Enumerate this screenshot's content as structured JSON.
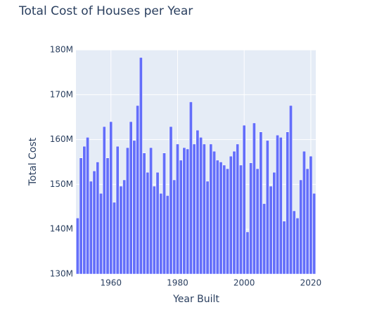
{
  "chart_data": {
    "type": "bar",
    "title": "Total Cost of Houses per Year",
    "x_label": "Year Built",
    "y_label": "Total Cost",
    "color": "#636efa",
    "grid": true,
    "x": [
      1950,
      1951,
      1952,
      1953,
      1954,
      1955,
      1956,
      1957,
      1958,
      1959,
      1960,
      1961,
      1962,
      1963,
      1964,
      1965,
      1966,
      1967,
      1968,
      1969,
      1970,
      1971,
      1972,
      1973,
      1974,
      1975,
      1976,
      1977,
      1978,
      1979,
      1980,
      1981,
      1982,
      1983,
      1984,
      1985,
      1986,
      1987,
      1988,
      1989,
      1990,
      1991,
      1992,
      1993,
      1994,
      1995,
      1996,
      1997,
      1998,
      1999,
      2000,
      2001,
      2002,
      2003,
      2004,
      2005,
      2006,
      2007,
      2008,
      2009,
      2010,
      2011,
      2012,
      2013,
      2014,
      2015,
      2016,
      2017,
      2018,
      2019,
      2020,
      2021
    ],
    "values": [
      142500000,
      155900000,
      158500000,
      160500000,
      150700000,
      153000000,
      155000000,
      148000000,
      162900000,
      155900000,
      164000000,
      146000000,
      158500000,
      149600000,
      151000000,
      158200000,
      164000000,
      159800000,
      167600000,
      178300000,
      157000000,
      152700000,
      158200000,
      149600000,
      152700000,
      148000000,
      157000000,
      147500000,
      162900000,
      151000000,
      159000000,
      155400000,
      158200000,
      157900000,
      168400000,
      159000000,
      162100000,
      160500000,
      159000000,
      150700000,
      159000000,
      157400000,
      155400000,
      155000000,
      154300000,
      153500000,
      156300000,
      157400000,
      159000000,
      154300000,
      163200000,
      139400000,
      154800000,
      163700000,
      153500000,
      161700000,
      145700000,
      159800000,
      149600000,
      152700000,
      161000000,
      160500000,
      141800000,
      161700000,
      167600000,
      144100000,
      142500000,
      151000000,
      157400000,
      153500000,
      156300000,
      148000000
    ],
    "xlim": [
      1949.5,
      2021.5
    ],
    "xticks": [
      1960,
      1980,
      2000,
      2020
    ],
    "ylim": [
      130000000,
      180000000
    ],
    "yticks": [
      {
        "value": 130000000,
        "label": "130M"
      },
      {
        "value": 140000000,
        "label": "140M"
      },
      {
        "value": 150000000,
        "label": "150M"
      },
      {
        "value": 160000000,
        "label": "160M"
      },
      {
        "value": 170000000,
        "label": "170M"
      },
      {
        "value": 180000000,
        "label": "180M"
      }
    ]
  }
}
